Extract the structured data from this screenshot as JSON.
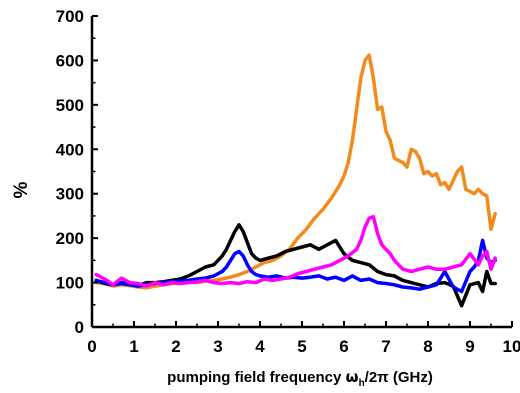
{
  "chart_data": {
    "type": "line",
    "title": "",
    "xlabel_prefix": "pumping field frequency ",
    "xlabel_omega": "ω",
    "xlabel_sub": "h",
    "xlabel_suffix": "/2π  (GHz)",
    "ylabel": "%",
    "xlim": [
      0,
      10
    ],
    "ylim": [
      0,
      700
    ],
    "x_ticks": [
      0,
      1,
      2,
      3,
      4,
      5,
      6,
      7,
      8,
      9,
      10
    ],
    "x_tick_labels": [
      "0",
      "1",
      "2",
      "3",
      "4",
      "5",
      "6",
      "7",
      "8",
      "9",
      "10"
    ],
    "y_ticks": [
      0,
      100,
      200,
      300,
      400,
      500,
      600,
      700
    ],
    "y_tick_labels": [
      "0",
      "100",
      "200",
      "300",
      "400",
      "500",
      "600",
      "700"
    ],
    "grid": false,
    "legend": "none",
    "series": [
      {
        "color": "#f28a1c",
        "x": [
          0.1,
          0.3,
          0.5,
          0.7,
          0.9,
          1.1,
          1.3,
          1.5,
          1.7,
          1.9,
          2.1,
          2.3,
          2.5,
          2.7,
          2.9,
          3.1,
          3.3,
          3.5,
          3.7,
          3.9,
          4.1,
          4.3,
          4.5,
          4.7,
          4.9,
          5.1,
          5.3,
          5.5,
          5.7,
          5.9,
          6.0,
          6.1,
          6.2,
          6.3,
          6.4,
          6.5,
          6.6,
          6.7,
          6.8,
          6.9,
          7.0,
          7.1,
          7.2,
          7.3,
          7.4,
          7.5,
          7.6,
          7.7,
          7.8,
          7.9,
          8.0,
          8.1,
          8.2,
          8.3,
          8.4,
          8.5,
          8.6,
          8.7,
          8.8,
          8.9,
          9.0,
          9.1,
          9.2,
          9.3,
          9.4,
          9.5,
          9.6
        ],
        "values": [
          100,
          98,
          92,
          95,
          93,
          90,
          88,
          92,
          95,
          98,
          100,
          102,
          100,
          103,
          105,
          108,
          112,
          118,
          125,
          135,
          145,
          150,
          160,
          175,
          200,
          220,
          245,
          265,
          290,
          320,
          340,
          370,
          420,
          490,
          560,
          600,
          612,
          560,
          490,
          495,
          440,
          420,
          380,
          375,
          370,
          360,
          400,
          395,
          380,
          345,
          350,
          340,
          345,
          320,
          325,
          310,
          330,
          350,
          360,
          310,
          305,
          300,
          310,
          300,
          295,
          220,
          255
        ]
      },
      {
        "color": "#000000",
        "x": [
          0.1,
          0.3,
          0.5,
          0.7,
          0.9,
          1.1,
          1.3,
          1.5,
          1.7,
          1.9,
          2.1,
          2.3,
          2.5,
          2.7,
          2.9,
          3.0,
          3.1,
          3.2,
          3.3,
          3.4,
          3.5,
          3.6,
          3.7,
          3.8,
          3.9,
          4.0,
          4.2,
          4.4,
          4.6,
          4.8,
          5.0,
          5.2,
          5.4,
          5.6,
          5.8,
          6.0,
          6.2,
          6.4,
          6.6,
          6.8,
          7.0,
          7.2,
          7.4,
          7.6,
          7.8,
          8.0,
          8.2,
          8.4,
          8.6,
          8.8,
          9.0,
          9.2,
          9.3,
          9.4,
          9.5,
          9.6
        ],
        "values": [
          105,
          98,
          95,
          100,
          97,
          93,
          100,
          100,
          102,
          105,
          108,
          115,
          125,
          135,
          140,
          150,
          160,
          175,
          195,
          215,
          230,
          215,
          190,
          165,
          155,
          150,
          155,
          160,
          170,
          175,
          180,
          185,
          175,
          185,
          195,
          165,
          150,
          145,
          140,
          125,
          118,
          115,
          105,
          100,
          95,
          90,
          98,
          100,
          92,
          48,
          95,
          100,
          80,
          125,
          98,
          98
        ]
      },
      {
        "color": "#0000ff",
        "x": [
          0.1,
          0.3,
          0.5,
          0.7,
          0.9,
          1.1,
          1.3,
          1.5,
          1.7,
          1.9,
          2.1,
          2.3,
          2.5,
          2.7,
          2.9,
          3.0,
          3.1,
          3.2,
          3.3,
          3.4,
          3.5,
          3.6,
          3.7,
          3.8,
          3.9,
          4.0,
          4.2,
          4.4,
          4.6,
          4.8,
          5.0,
          5.2,
          5.4,
          5.6,
          5.8,
          6.0,
          6.2,
          6.4,
          6.6,
          6.8,
          7.0,
          7.2,
          7.4,
          7.6,
          7.8,
          8.0,
          8.2,
          8.4,
          8.6,
          8.8,
          9.0,
          9.1,
          9.2,
          9.3,
          9.4,
          9.5,
          9.6
        ],
        "values": [
          105,
          100,
          95,
          98,
          95,
          92,
          95,
          98,
          100,
          102,
          103,
          105,
          108,
          110,
          115,
          120,
          125,
          135,
          150,
          165,
          170,
          160,
          140,
          125,
          118,
          115,
          112,
          115,
          110,
          112,
          110,
          112,
          115,
          108,
          112,
          105,
          115,
          105,
          108,
          100,
          98,
          95,
          90,
          88,
          85,
          90,
          95,
          125,
          90,
          80,
          125,
          135,
          150,
          195,
          155,
          145,
          150
        ]
      },
      {
        "color": "#ff00ff",
        "x": [
          0.1,
          0.3,
          0.5,
          0.7,
          0.9,
          1.1,
          1.3,
          1.5,
          1.7,
          1.9,
          2.1,
          2.3,
          2.5,
          2.7,
          2.9,
          3.1,
          3.3,
          3.5,
          3.7,
          3.9,
          4.1,
          4.3,
          4.5,
          4.7,
          4.9,
          5.1,
          5.3,
          5.5,
          5.7,
          5.9,
          6.1,
          6.3,
          6.4,
          6.5,
          6.6,
          6.7,
          6.8,
          6.9,
          7.0,
          7.1,
          7.2,
          7.3,
          7.4,
          7.6,
          7.8,
          8.0,
          8.2,
          8.4,
          8.6,
          8.8,
          9.0,
          9.2,
          9.3,
          9.4,
          9.5,
          9.6
        ],
        "values": [
          118,
          108,
          95,
          110,
          100,
          98,
          92,
          100,
          95,
          100,
          98,
          100,
          102,
          105,
          100,
          98,
          100,
          98,
          102,
          100,
          108,
          105,
          108,
          112,
          120,
          125,
          130,
          135,
          140,
          150,
          160,
          175,
          195,
          225,
          245,
          248,
          210,
          185,
          175,
          165,
          150,
          140,
          130,
          125,
          130,
          135,
          130,
          130,
          135,
          140,
          165,
          140,
          160,
          170,
          130,
          155
        ]
      }
    ]
  }
}
